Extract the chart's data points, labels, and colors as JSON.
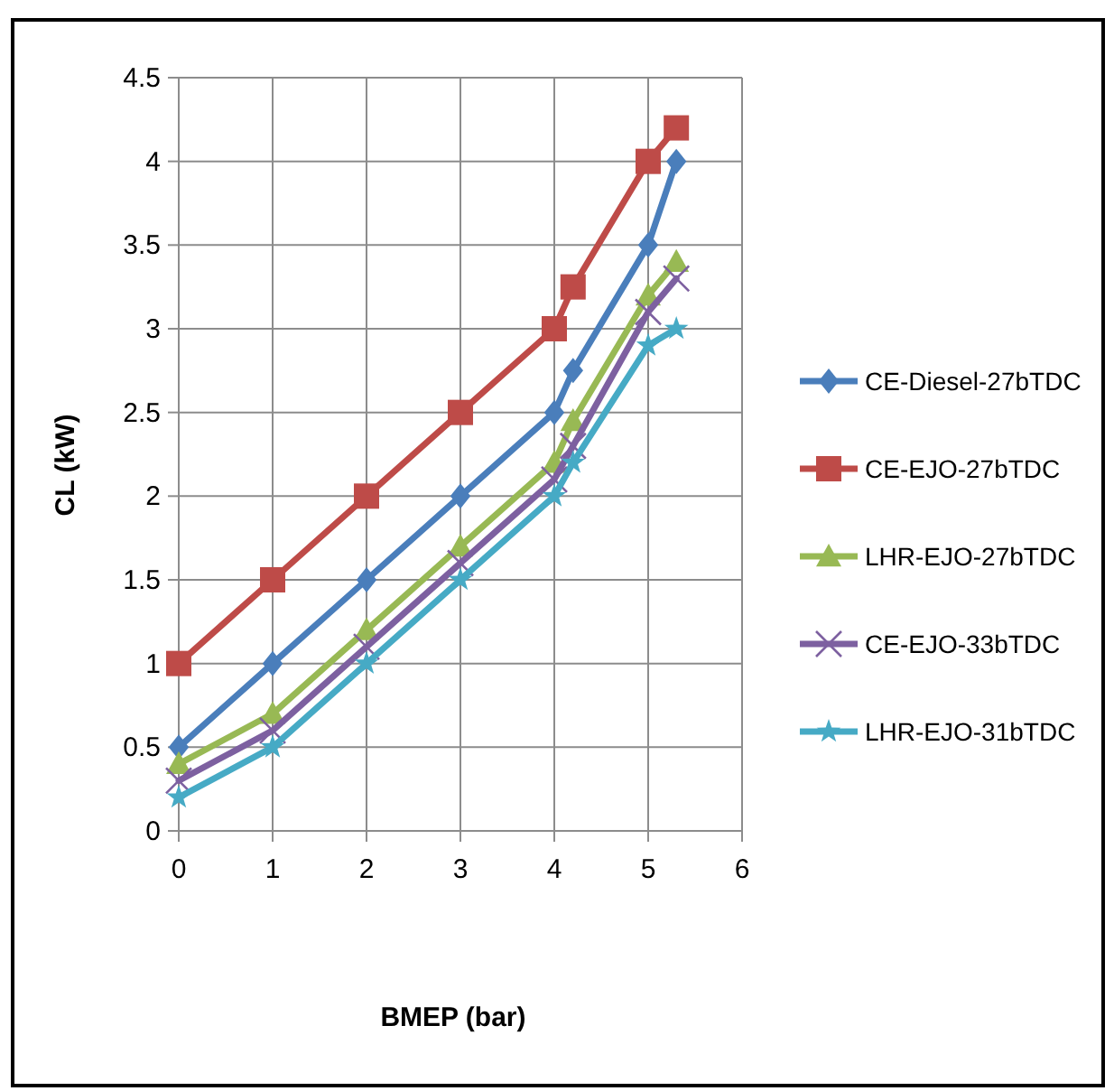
{
  "chart_data": {
    "type": "line",
    "xlabel": "BMEP (bar)",
    "ylabel": "CL (kW)",
    "x": [
      0,
      1,
      2,
      3,
      4,
      4.2,
      5,
      5.3
    ],
    "xlim": [
      0,
      6
    ],
    "xticks": [
      0,
      1,
      2,
      3,
      4,
      5,
      6
    ],
    "ylim": [
      0,
      4.5
    ],
    "yticks": [
      0,
      0.5,
      1,
      1.5,
      2,
      2.5,
      3,
      3.5,
      4,
      4.5
    ],
    "grid": true,
    "legend": "right",
    "series": [
      {
        "name": "CE-Diesel-27bTDC",
        "color": "#4a7ebb",
        "marker": "diamond",
        "values": [
          0.5,
          1,
          1.5,
          2,
          2.5,
          2.75,
          3.5,
          4.0
        ]
      },
      {
        "name": "CE-EJO-27bTDC",
        "color": "#be4b48",
        "marker": "square",
        "values": [
          1,
          1.5,
          2,
          2.5,
          3,
          3.25,
          4,
          4.2
        ]
      },
      {
        "name": "LHR-EJO-27bTDC",
        "color": "#98b954",
        "marker": "triangle",
        "values": [
          0.4,
          0.7,
          1.2,
          1.7,
          2.2,
          2.45,
          3.2,
          3.4
        ]
      },
      {
        "name": "CE-EJO-33bTDC",
        "color": "#7d60a0",
        "marker": "cross",
        "values": [
          0.3,
          0.6,
          1.1,
          1.6,
          2.1,
          2.3,
          3.1,
          3.3
        ]
      },
      {
        "name": "LHR-EJO-31bTDC",
        "color": "#46aac5",
        "marker": "star",
        "values": [
          0.2,
          0.5,
          1.0,
          1.5,
          2.0,
          2.2,
          2.9,
          3.0
        ]
      }
    ]
  }
}
